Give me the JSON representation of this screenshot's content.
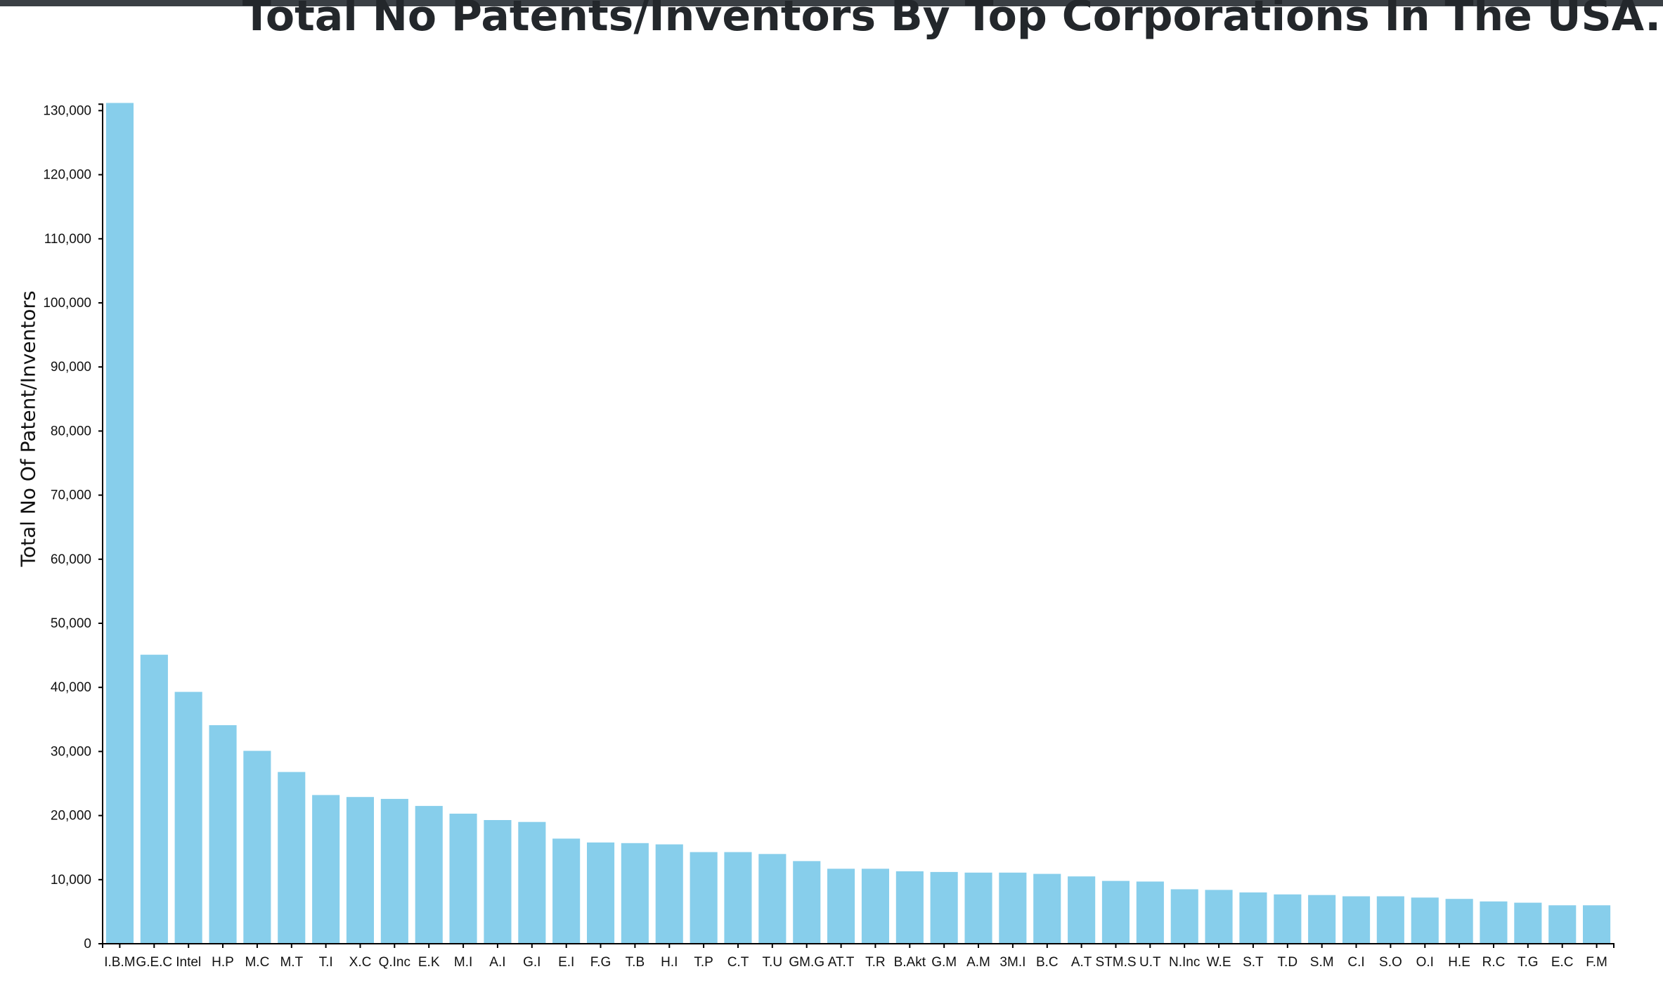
{
  "chart_data": {
    "type": "bar",
    "title": "Total No Patents/Inventors By Top Corporations In The USA.",
    "xlabel": "",
    "ylabel": "Total No Of Patent/Inventors",
    "ylim": [
      0,
      131000
    ],
    "yticks": [
      0,
      10000,
      20000,
      30000,
      40000,
      50000,
      60000,
      70000,
      80000,
      90000,
      100000,
      110000,
      120000,
      130000
    ],
    "ytick_labels": [
      "0",
      "10,000",
      "20,000",
      "30,000",
      "40,000",
      "50,000",
      "60,000",
      "70,000",
      "80,000",
      "90,000",
      "100,000",
      "110,000",
      "120,000",
      "130,000"
    ],
    "grid": false,
    "bar_color": "#87ceeb",
    "categories": [
      "I.B.M",
      "G.E.C",
      "Intel",
      "H.P",
      "M.C",
      "M.T",
      "T.I",
      "X.C",
      "Q.Inc",
      "E.K",
      "M.I",
      "A.I",
      "G.I",
      "E.I",
      "F.G",
      "T.B",
      "H.I",
      "T.P",
      "C.T",
      "T.U",
      "GM.G",
      "AT.T",
      "T.R",
      "B.Akt",
      "G.M",
      "A.M",
      "3M.I",
      "B.C",
      "A.T",
      "STM.S",
      "U.T",
      "N.Inc",
      "W.E",
      "S.T",
      "T.D",
      "S.M",
      "C.I",
      "S.O",
      "O.I",
      "H.E",
      "R.C",
      "T.G",
      "E.C",
      "F.M"
    ],
    "values": [
      131200,
      45100,
      39300,
      34100,
      30100,
      26800,
      23200,
      22900,
      22600,
      21500,
      20300,
      19300,
      19000,
      16400,
      15800,
      15700,
      15500,
      14300,
      14300,
      14000,
      12900,
      11700,
      11700,
      11300,
      11200,
      11100,
      11100,
      10900,
      10500,
      9800,
      9700,
      8500,
      8400,
      8000,
      7700,
      7600,
      7400,
      7400,
      7200,
      7000,
      6600,
      6400,
      6000,
      6000
    ]
  }
}
